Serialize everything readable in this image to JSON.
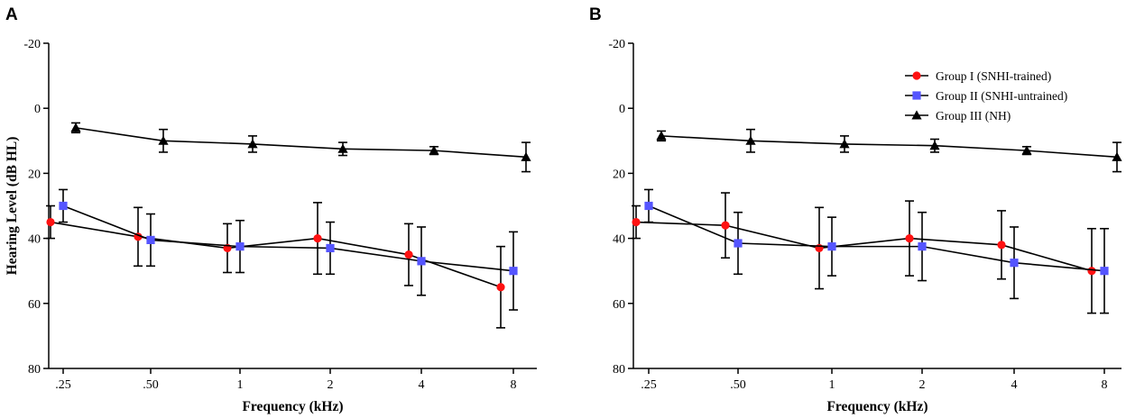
{
  "chart_data": [
    {
      "panel": "A",
      "type": "line",
      "xlabel": "Frequency (kHz)",
      "ylabel": "Hearing Level (dB HL)",
      "categories": [
        ".25",
        ".50",
        "1",
        "2",
        "4",
        "8"
      ],
      "ylim": [
        -20,
        80
      ],
      "y_inverted": true,
      "yticks": [
        -20,
        0,
        20,
        40,
        60,
        80
      ],
      "error_bars": true,
      "legend": false,
      "series": [
        {
          "name": "Group I (SNHI-trained)",
          "color": "#ff1111",
          "marker": "circle",
          "offset": -1,
          "values": [
            35,
            39.5,
            43,
            40,
            45,
            55
          ],
          "errors": [
            5,
            9,
            7.5,
            11,
            9.5,
            12.5
          ]
        },
        {
          "name": "Group II (SNHI-untrained)",
          "color": "#5555ff",
          "marker": "square",
          "offset": 0,
          "values": [
            30,
            40.5,
            42.5,
            43,
            47,
            50
          ],
          "errors": [
            5,
            8,
            8,
            8,
            10.5,
            12
          ]
        },
        {
          "name": "Group III (NH)",
          "color": "#000000",
          "marker": "triangle",
          "offset": 1,
          "values": [
            6,
            10,
            11,
            12.5,
            13,
            15
          ],
          "errors": [
            1.5,
            3.5,
            2.5,
            2,
            1.2,
            4.5
          ]
        }
      ]
    },
    {
      "panel": "B",
      "type": "line",
      "xlabel": "Frequency (kHz)",
      "ylabel": "",
      "categories": [
        ".25",
        ".50",
        "1",
        "2",
        "4",
        "8"
      ],
      "ylim": [
        -20,
        80
      ],
      "y_inverted": true,
      "yticks": [
        -20,
        0,
        20,
        40,
        60,
        80
      ],
      "error_bars": true,
      "legend": true,
      "legend_position": "top-right",
      "series": [
        {
          "name": "Group I (SNHI-trained)",
          "color": "#ff1111",
          "marker": "circle",
          "offset": -1,
          "values": [
            35,
            36,
            43,
            40,
            42,
            50
          ],
          "errors": [
            5,
            10,
            12.5,
            11.5,
            10.5,
            13
          ]
        },
        {
          "name": "Group II (SNHI-untrained)",
          "color": "#5555ff",
          "marker": "square",
          "offset": 0,
          "values": [
            30,
            41.5,
            42.5,
            42.5,
            47.5,
            50
          ],
          "errors": [
            5,
            9.5,
            9,
            10.5,
            11,
            13
          ]
        },
        {
          "name": "Group III (NH)",
          "color": "#000000",
          "marker": "triangle",
          "offset": 1,
          "values": [
            8.5,
            10,
            11,
            11.5,
            13,
            15
          ],
          "errors": [
            1.5,
            3.5,
            2.5,
            2,
            1.2,
            4.5
          ]
        }
      ]
    }
  ]
}
